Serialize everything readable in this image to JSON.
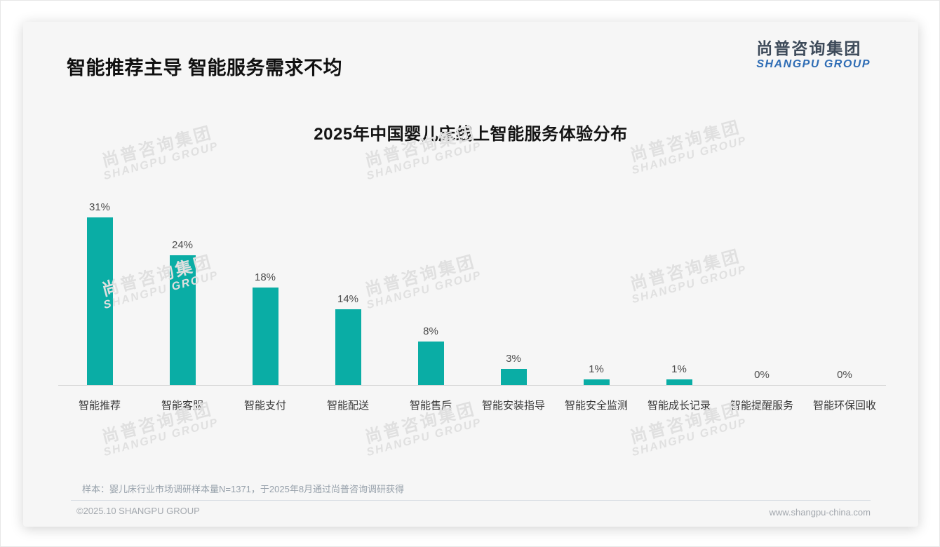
{
  "page": {
    "slide_title": "智能推荐主导 智能服务需求不均",
    "logo": {
      "cn": "尚普咨询集团",
      "en": "SHANGPU GROUP",
      "cn_color": "#3d4a59",
      "en_color": "#2f6db5"
    },
    "watermark": {
      "line1": "尚普咨询集团",
      "line2": "SHANGPU GROUP"
    },
    "footnote": "样本：婴儿床行业市场调研样本量N=1371，于2025年8月通过尚普咨询调研获得",
    "footer": {
      "copyright": "©2025.10 SHANGPU GROUP",
      "website": "www.shangpu-china.com"
    }
  },
  "chart_data": {
    "type": "bar",
    "title": "2025年中国婴儿床线上智能服务体验分布",
    "categories": [
      "智能推荐",
      "智能客服",
      "智能支付",
      "智能配送",
      "智能售后",
      "智能安装指导",
      "智能安全监测",
      "智能成长记录",
      "智能提醒服务",
      "智能环保回收"
    ],
    "values": [
      31,
      24,
      18,
      14,
      8,
      3,
      1,
      1,
      0,
      0
    ],
    "data_labels": [
      "31%",
      "24%",
      "18%",
      "14%",
      "8%",
      "3%",
      "1%",
      "1%",
      "0%",
      "0%"
    ],
    "unit": "%",
    "bar_color": "#0aada5",
    "ylim": [
      0,
      35
    ],
    "xlabel": "",
    "ylabel": "",
    "grid": false,
    "legend": false,
    "data_labels_position": "above-bars"
  }
}
